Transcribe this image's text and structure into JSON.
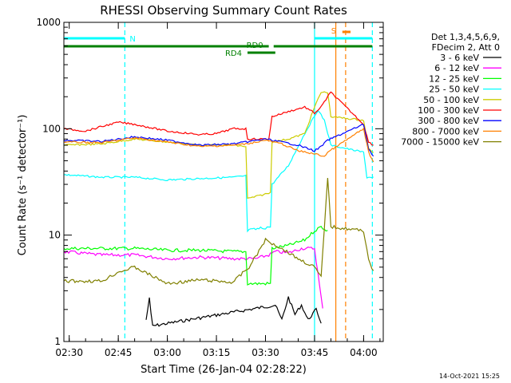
{
  "chart_data": {
    "type": "line",
    "title": "RHESSI Observing Summary Count Rates",
    "xlabel": "Start Time (26-Jan-04 02:28:22)",
    "ylabel": "Count Rate (s⁻¹ detector⁻¹)",
    "x_unit": "UT time (HH:MM, 26-Jan-2004)",
    "xlim": [
      "02:28:22",
      "04:06:00"
    ],
    "ylim": [
      1,
      1000
    ],
    "y_scale": "log",
    "x_ticks": [
      "02:30",
      "02:45",
      "03:00",
      "03:15",
      "03:30",
      "03:45",
      "04:00"
    ],
    "y_ticks": [
      "1",
      "10",
      "100",
      "1000"
    ],
    "grid": false,
    "legend_position": "right",
    "legend_header": [
      "Det 1,3,4,5,6,9,",
      "FDecim 2, Att 0"
    ],
    "footer_date": "14-Oct-2021 15:25",
    "state_bars": [
      {
        "label": "N",
        "color": "#00ffff",
        "segments": [
          [
            "02:28:22",
            "02:47:00"
          ],
          [
            "03:45:00",
            "04:02:40"
          ]
        ]
      },
      {
        "label": "S",
        "color": "#ff8000",
        "segments": [
          [
            "03:53:30",
            "03:56:00"
          ]
        ]
      },
      {
        "label": "RD0",
        "color": "#008000",
        "segments": [
          [
            "02:28:22",
            "03:31:00"
          ],
          [
            "03:32:30",
            "04:02:40"
          ]
        ]
      },
      {
        "label": "RD4",
        "color": "#008000",
        "segments": [
          [
            "03:24:30",
            "03:33:00"
          ]
        ]
      }
    ],
    "vlines": [
      {
        "time": "02:47:00",
        "color": "#00ffff",
        "style": "dashed"
      },
      {
        "time": "03:45:00",
        "color": "#00ffff",
        "style": "solid"
      },
      {
        "time": "03:51:30",
        "color": "#ff8000",
        "style": "solid"
      },
      {
        "time": "03:54:30",
        "color": "#ff8000",
        "style": "dashed"
      },
      {
        "time": "04:02:40",
        "color": "#00ffff",
        "style": "dashed"
      }
    ],
    "series": [
      {
        "name": "3 - 6 keV",
        "color": "#000000",
        "x": [
          "02:53:30",
          "02:54:00",
          "02:54:30",
          "02:55:00",
          "02:55:30",
          "03:33:00",
          "03:35:00",
          "03:37:00",
          "03:39:00",
          "03:41:00",
          "03:43:00",
          "03:45:30",
          "03:47:00"
        ],
        "y": [
          1.6,
          2.0,
          2.6,
          1.8,
          1.4,
          2.2,
          1.6,
          2.6,
          1.8,
          2.2,
          1.6,
          2.0,
          1.5
        ]
      },
      {
        "name": "6 - 12 keV",
        "color": "#ff00ff",
        "x": [
          "02:28:22",
          "02:40:00",
          "02:50:00",
          "03:00:00",
          "03:10:00",
          "03:20:00",
          "03:27:00",
          "03:31:00",
          "03:33:00",
          "03:37:00",
          "03:41:00",
          "03:45:00",
          "03:47:30"
        ],
        "y": [
          7.0,
          6.5,
          6.5,
          6.0,
          6.2,
          6.0,
          6.0,
          6.5,
          7.0,
          6.8,
          7.5,
          7.5,
          2.0
        ]
      },
      {
        "name": "12 - 25 keV",
        "color": "#00ff00",
        "x": [
          "02:28:22",
          "02:40:00",
          "02:50:00",
          "03:00:00",
          "03:10:00",
          "03:20:00",
          "03:24:00",
          "03:24:30",
          "03:30:00",
          "03:31:30",
          "03:32:00",
          "03:37:00",
          "03:42:00",
          "03:45:00",
          "03:47:00",
          "03:49:00"
        ],
        "y": [
          7.5,
          7.5,
          7.5,
          7.2,
          7.2,
          7.0,
          7.0,
          3.5,
          3.5,
          3.5,
          7.5,
          8.0,
          9.0,
          11.0,
          12.0,
          11.0
        ]
      },
      {
        "name": "25 - 50 keV",
        "color": "#00ffff",
        "x": [
          "02:28:22",
          "02:40:00",
          "02:50:00",
          "03:00:00",
          "03:10:00",
          "03:20:00",
          "03:24:00",
          "03:24:30",
          "03:31:30",
          "03:32:00",
          "03:37:00",
          "03:42:00",
          "03:46:00",
          "03:48:00",
          "03:50:00",
          "04:00:00",
          "04:01:00",
          "04:03:00"
        ],
        "y": [
          37,
          35,
          35,
          33,
          34,
          35,
          36,
          11,
          12,
          30,
          45,
          90,
          150,
          120,
          70,
          60,
          35,
          35
        ]
      },
      {
        "name": "50 - 100 keV",
        "color": "#cccc00",
        "x": [
          "02:28:22",
          "02:40:00",
          "02:50:00",
          "03:00:00",
          "03:10:00",
          "03:20:00",
          "03:24:00",
          "03:24:30",
          "03:31:30",
          "03:32:00",
          "03:37:00",
          "03:42:00",
          "03:45:00",
          "03:47:00",
          "03:49:00",
          "03:50:00",
          "04:00:00",
          "04:01:30",
          "04:03:00"
        ],
        "y": [
          70,
          72,
          80,
          75,
          70,
          70,
          68,
          22,
          25,
          75,
          80,
          90,
          160,
          220,
          220,
          130,
          120,
          65,
          60
        ]
      },
      {
        "name": "100 - 300 keV",
        "color": "#ff0000",
        "x": [
          "02:28:22",
          "02:35:00",
          "02:40:00",
          "02:45:00",
          "02:50:00",
          "03:00:00",
          "03:10:00",
          "03:15:00",
          "03:20:00",
          "03:24:00",
          "03:24:30",
          "03:31:00",
          "03:32:00",
          "03:37:00",
          "03:42:00",
          "03:45:00",
          "03:47:00",
          "03:49:00",
          "03:50:00",
          "04:00:00",
          "04:01:30",
          "04:03:00"
        ],
        "y": [
          100,
          95,
          105,
          115,
          110,
          95,
          88,
          90,
          100,
          100,
          80,
          80,
          130,
          145,
          160,
          140,
          160,
          200,
          220,
          110,
          75,
          70
        ]
      },
      {
        "name": "300 - 800 keV",
        "color": "#0000ff",
        "x": [
          "02:28:22",
          "02:40:00",
          "02:50:00",
          "03:00:00",
          "03:10:00",
          "03:20:00",
          "03:24:00",
          "03:30:00",
          "03:35:00",
          "03:40:00",
          "03:45:00",
          "03:47:00",
          "03:49:00",
          "04:00:00",
          "04:01:30",
          "04:03:00"
        ],
        "y": [
          78,
          76,
          84,
          78,
          70,
          72,
          75,
          80,
          75,
          70,
          62,
          68,
          78,
          110,
          65,
          55
        ]
      },
      {
        "name": "800 - 7000 keV",
        "color": "#ff8000",
        "x": [
          "02:28:22",
          "02:40:00",
          "02:50:00",
          "03:00:00",
          "03:10:00",
          "03:20:00",
          "03:24:00",
          "03:30:00",
          "03:35:00",
          "03:40:00",
          "03:45:00",
          "03:48:00",
          "03:49:00",
          "04:00:00",
          "04:01:30",
          "04:03:00"
        ],
        "y": [
          75,
          74,
          82,
          75,
          68,
          70,
          72,
          78,
          72,
          62,
          58,
          55,
          60,
          100,
          60,
          48
        ]
      },
      {
        "name": "7000 - 15000 keV",
        "color": "#808000",
        "x": [
          "02:28:22",
          "02:40:00",
          "02:45:00",
          "02:50:00",
          "03:00:00",
          "03:10:00",
          "03:20:00",
          "03:25:00",
          "03:30:00",
          "03:35:00",
          "03:40:00",
          "03:45:00",
          "03:47:00",
          "03:49:00",
          "03:50:00",
          "04:00:00",
          "04:01:30",
          "04:03:00"
        ],
        "y": [
          3.7,
          3.7,
          4.5,
          5.0,
          3.5,
          3.8,
          3.6,
          5.0,
          9.0,
          7.5,
          6.0,
          5.0,
          4.0,
          35,
          12,
          11,
          6.0,
          4.5
        ]
      }
    ]
  }
}
